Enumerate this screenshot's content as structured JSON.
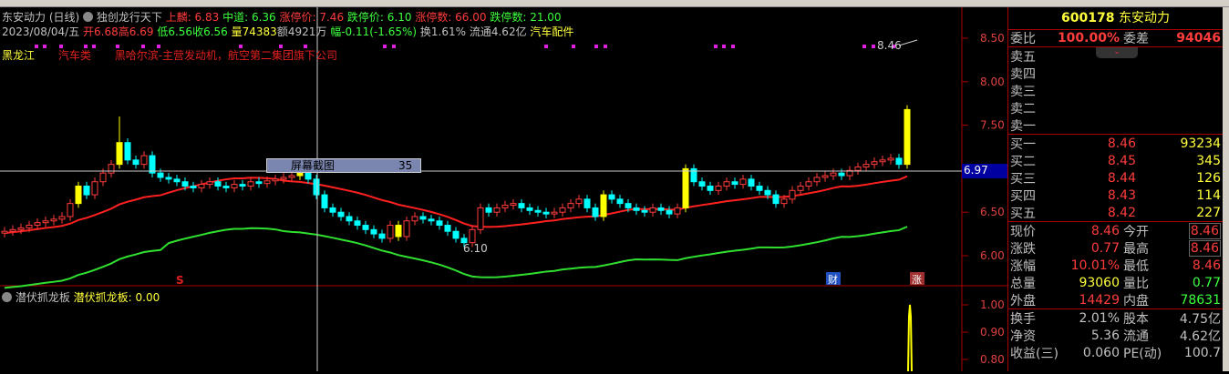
{
  "header": {
    "stock": "东安动力 (日线)",
    "indicator": "独创龙行天下",
    "upper_label": "上麟: 6.83",
    "mid_label": "中道: 6.36",
    "limitup_label": "涨停价: 7.46",
    "limitdown_label": "跌停价: 6.10",
    "limitup_count": "涨停数: 66.00",
    "limitdown_count": "跌停数: 21.00",
    "date": "2023/08/04/五",
    "open": "开6.68",
    "high": "高6.69",
    "low": "低6.56",
    "close": "收6.56",
    "volume": "量74383",
    "amount": "额4921万",
    "change": "幅-0.11(-1.65%)",
    "turnover": "换1.61%",
    "float": "流通4.62亿",
    "sector": "汽车配件",
    "region": "黑龙江",
    "category": "汽车类",
    "desc": "黑哈尔滨-主营发动机，航空第二集团旗下公司"
  },
  "annotations": {
    "high_mark": "8.46",
    "low_mark": "6.10",
    "screenshot_label": "屏幕截图",
    "screenshot_num": "35",
    "cross_price": "6.97",
    "tag_cai": "财",
    "tag_zhang": "涨",
    "tag_s": "S"
  },
  "lower": {
    "name": "潜伏抓龙板",
    "value_label": "潜伏抓龙板: 0.00",
    "axis": [
      "1.00",
      "0.90",
      "0.80"
    ]
  },
  "axis": {
    "ticks": [
      "8.50",
      "8.00",
      "7.50",
      "6.50",
      "6.00"
    ]
  },
  "colors": {
    "up": "#ff3c3c",
    "down": "#00ffff",
    "limit": "#ffff00",
    "ma": "#ff2020",
    "band": "#30e030"
  },
  "chart_data": {
    "type": "candlestick",
    "closes": [
      6.28,
      6.3,
      6.32,
      6.35,
      6.38,
      6.4,
      6.42,
      6.45,
      6.6,
      6.8,
      6.7,
      6.85,
      6.95,
      7.05,
      7.3,
      7.1,
      7.05,
      7.15,
      6.95,
      6.9,
      6.88,
      6.85,
      6.8,
      6.78,
      6.82,
      6.85,
      6.8,
      6.78,
      6.82,
      6.8,
      6.85,
      6.83,
      6.86,
      6.88,
      6.9,
      6.92,
      6.95,
      6.88,
      6.7,
      6.55,
      6.5,
      6.45,
      6.4,
      6.35,
      6.3,
      6.25,
      6.2,
      6.35,
      6.22,
      6.4,
      6.45,
      6.42,
      6.4,
      6.35,
      6.28,
      6.2,
      6.15,
      6.3,
      6.55,
      6.5,
      6.55,
      6.58,
      6.6,
      6.55,
      6.52,
      6.5,
      6.48,
      6.5,
      6.55,
      6.6,
      6.65,
      6.55,
      6.45,
      6.7,
      6.65,
      6.6,
      6.55,
      6.52,
      6.5,
      6.55,
      6.52,
      6.48,
      6.55,
      7.0,
      6.85,
      6.8,
      6.75,
      6.8,
      6.85,
      6.82,
      6.88,
      6.8,
      6.75,
      6.7,
      6.6,
      6.65,
      6.75,
      6.8,
      6.85,
      6.9,
      6.92,
      6.95,
      6.92,
      6.98,
      7.02,
      7.05,
      7.08,
      7.1,
      7.12,
      7.05,
      7.68
    ],
    "limit_up_index": [
      9,
      14,
      36,
      48,
      73,
      83,
      110
    ],
    "ylim": [
      5.85,
      8.6
    ]
  },
  "quote": {
    "code": "600178",
    "name": "东安动力",
    "weibi_label": "委比",
    "weibi": "100.00%",
    "weicha_label": "委差",
    "weicha": "94046",
    "sell": [
      "卖五",
      "卖四",
      "卖三",
      "卖二",
      "卖一"
    ],
    "buy": [
      {
        "l": "买一",
        "p": "8.46",
        "v": "93234"
      },
      {
        "l": "买二",
        "p": "8.45",
        "v": "345"
      },
      {
        "l": "买三",
        "p": "8.44",
        "v": "126"
      },
      {
        "l": "买四",
        "p": "8.43",
        "v": "114"
      },
      {
        "l": "买五",
        "p": "8.42",
        "v": "227"
      }
    ],
    "stats": [
      {
        "l": "现价",
        "v": "8.46",
        "l2": "今开",
        "v2": "8.46",
        "c1": "r",
        "c2": "r"
      },
      {
        "l": "涨跌",
        "v": "0.77",
        "l2": "最高",
        "v2": "8.46",
        "c1": "r",
        "c2": "r"
      },
      {
        "l": "涨幅",
        "v": "10.01%",
        "l2": "最低",
        "v2": "8.46",
        "c1": "r",
        "c2": "r"
      },
      {
        "l": "总量",
        "v": "93060",
        "l2": "量比",
        "v2": "0.77",
        "c1": "y",
        "c2": "g"
      },
      {
        "l": "外盘",
        "v": "14429",
        "l2": "内盘",
        "v2": "78631",
        "c1": "r",
        "c2": "g"
      }
    ],
    "extra": [
      {
        "l": "换手",
        "v": "2.01%",
        "l2": "股本",
        "v2": "4.75亿"
      },
      {
        "l": "净资",
        "v": "5.36",
        "l2": "流通",
        "v2": "4.62亿"
      },
      {
        "l": "收益(三)",
        "v": "0.060",
        "l2": "PE(动)",
        "v2": "100.7"
      }
    ]
  }
}
